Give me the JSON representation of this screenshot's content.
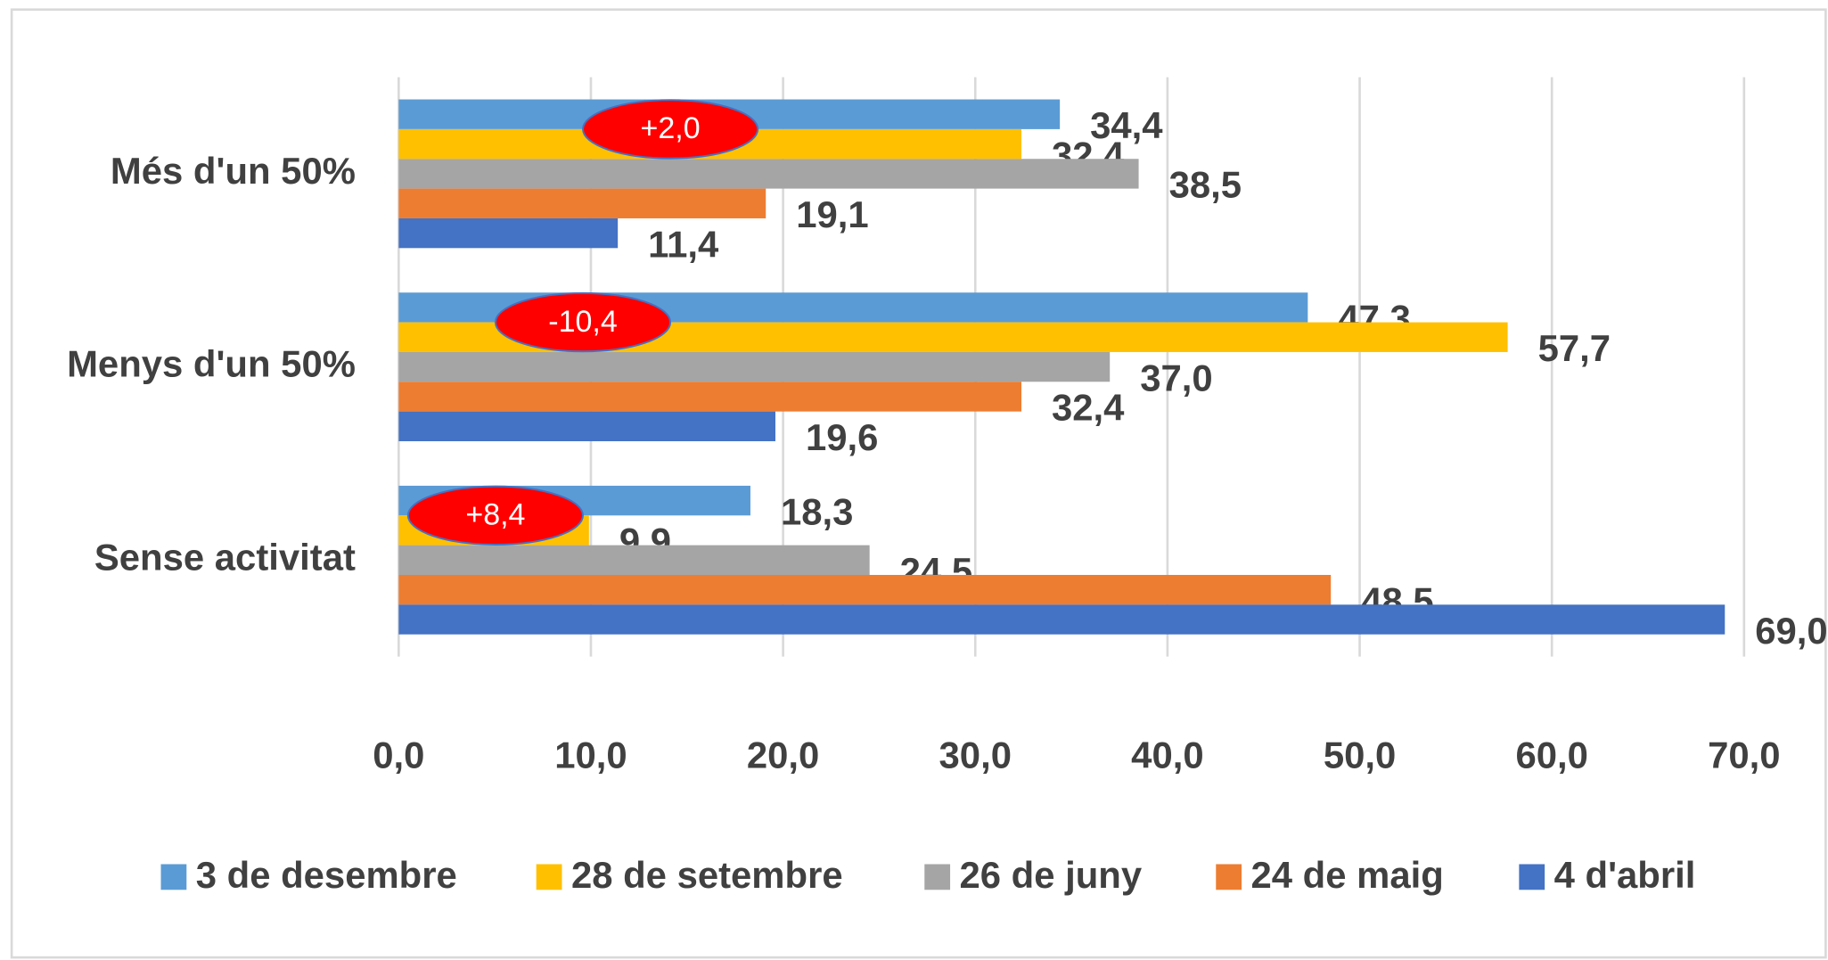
{
  "chart_data": {
    "type": "bar",
    "orientation": "horizontal",
    "categories": [
      "Més d'un 50%",
      "Menys d'un 50%",
      "Sense activitat"
    ],
    "series": [
      {
        "name": "3 de desembre",
        "color": "#5b9bd5",
        "values": [
          34.4,
          47.3,
          18.3
        ],
        "value_labels": [
          "34,4",
          "47,3",
          "18,3"
        ]
      },
      {
        "name": "28 de setembre",
        "color": "#ffc000",
        "values": [
          32.4,
          57.7,
          9.9
        ],
        "value_labels": [
          "32,4",
          "57,7",
          "9,9"
        ]
      },
      {
        "name": "26 de juny",
        "color": "#a5a5a5",
        "values": [
          38.5,
          37.0,
          24.5
        ],
        "value_labels": [
          "38,5",
          "37,0",
          "24,5"
        ]
      },
      {
        "name": "24 de maig",
        "color": "#ed7d31",
        "values": [
          19.1,
          32.4,
          48.5
        ],
        "value_labels": [
          "19,1",
          "32,4",
          "48,5"
        ]
      },
      {
        "name": "4 d'abril",
        "color": "#4472c4",
        "values": [
          11.4,
          19.6,
          69.0
        ],
        "value_labels": [
          "11,4",
          "19,6",
          "69,0"
        ]
      }
    ],
    "annotations": [
      "+2,0",
      "-10,4",
      "+8,4"
    ],
    "xlim": [
      0,
      70
    ],
    "xticks": [
      {
        "value": 0,
        "label": "0,0"
      },
      {
        "value": 10,
        "label": "10,0"
      },
      {
        "value": 20,
        "label": "20,0"
      },
      {
        "value": 30,
        "label": "30,0"
      },
      {
        "value": 40,
        "label": "40,0"
      },
      {
        "value": 50,
        "label": "50,0"
      },
      {
        "value": 60,
        "label": "60,0"
      },
      {
        "value": 70,
        "label": "70,0"
      }
    ],
    "grid": true,
    "legend": "bottom"
  }
}
